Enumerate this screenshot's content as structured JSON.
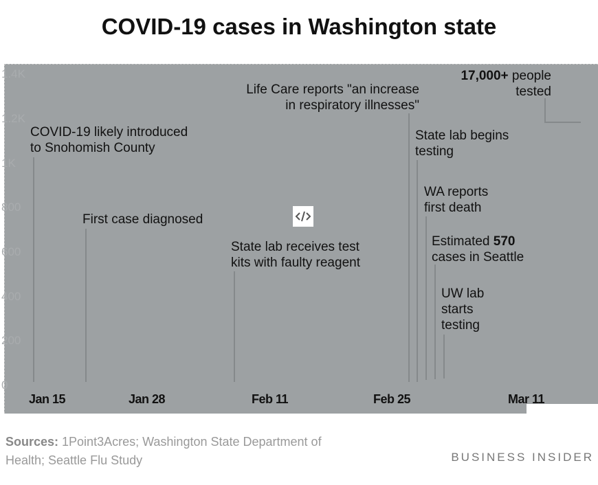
{
  "chart_data": {
    "type": "line",
    "title": "COVID-19 cases in Washington state",
    "y_ticks": [
      "0",
      "200",
      "400",
      "600",
      "800",
      "1K",
      "1.2K",
      "1.4K"
    ],
    "ylim": [
      0,
      1400
    ],
    "x_ticks": [
      "Jan 15",
      "Jan 28",
      "Feb 11",
      "Feb 25",
      "Mar 11"
    ],
    "grid": false,
    "annotations": [
      {
        "date": "Jan 15",
        "text": "COVID-19 likely introduced to Snohomish County"
      },
      {
        "date": "Jan 21",
        "text": "First case diagnosed"
      },
      {
        "date": "Feb 7",
        "text": "State lab receives test kits with faulty reagent"
      },
      {
        "date": "Feb 27",
        "text": "Life Care reports \"an increase in respiratory illnesses\""
      },
      {
        "date": "Feb 28",
        "text": "State lab begins testing"
      },
      {
        "date": "Feb 29",
        "text": "WA reports first death"
      },
      {
        "date": "Mar 1",
        "bold": "570",
        "text": "Estimated 570 cases in Seattle"
      },
      {
        "date": "Mar 2",
        "text": "UW lab starts testing"
      },
      {
        "date": "Mar 11",
        "bold": "17,000+",
        "text": "17,000+ people tested"
      }
    ]
  },
  "ann": {
    "a1": [
      "COVID-19 likely introduced",
      "to Snohomish County"
    ],
    "a2": "First case diagnosed",
    "a3": [
      "State lab receives test",
      "kits with faulty reagent"
    ],
    "a4": [
      "Life Care reports \"an increase",
      "in respiratory illnesses\""
    ],
    "a5": [
      "State lab begins",
      "testing"
    ],
    "a6": [
      "WA reports",
      "first death"
    ],
    "a7": {
      "pre": "Estimated ",
      "bold": "570",
      "post": "cases in Seattle"
    },
    "a8": [
      "UW lab",
      "starts",
      "testing"
    ],
    "a9": {
      "bold": "17,000+",
      "post": " people",
      "line2": "tested"
    }
  },
  "embed_icon": "code-embed-icon",
  "footer": {
    "sources_label": "Sources:",
    "sources_text": " 1Point3Acres; Washington State Department of",
    "sources_text2": "Health; Seattle Flu Study",
    "brand": "BUSINESS INSIDER"
  }
}
